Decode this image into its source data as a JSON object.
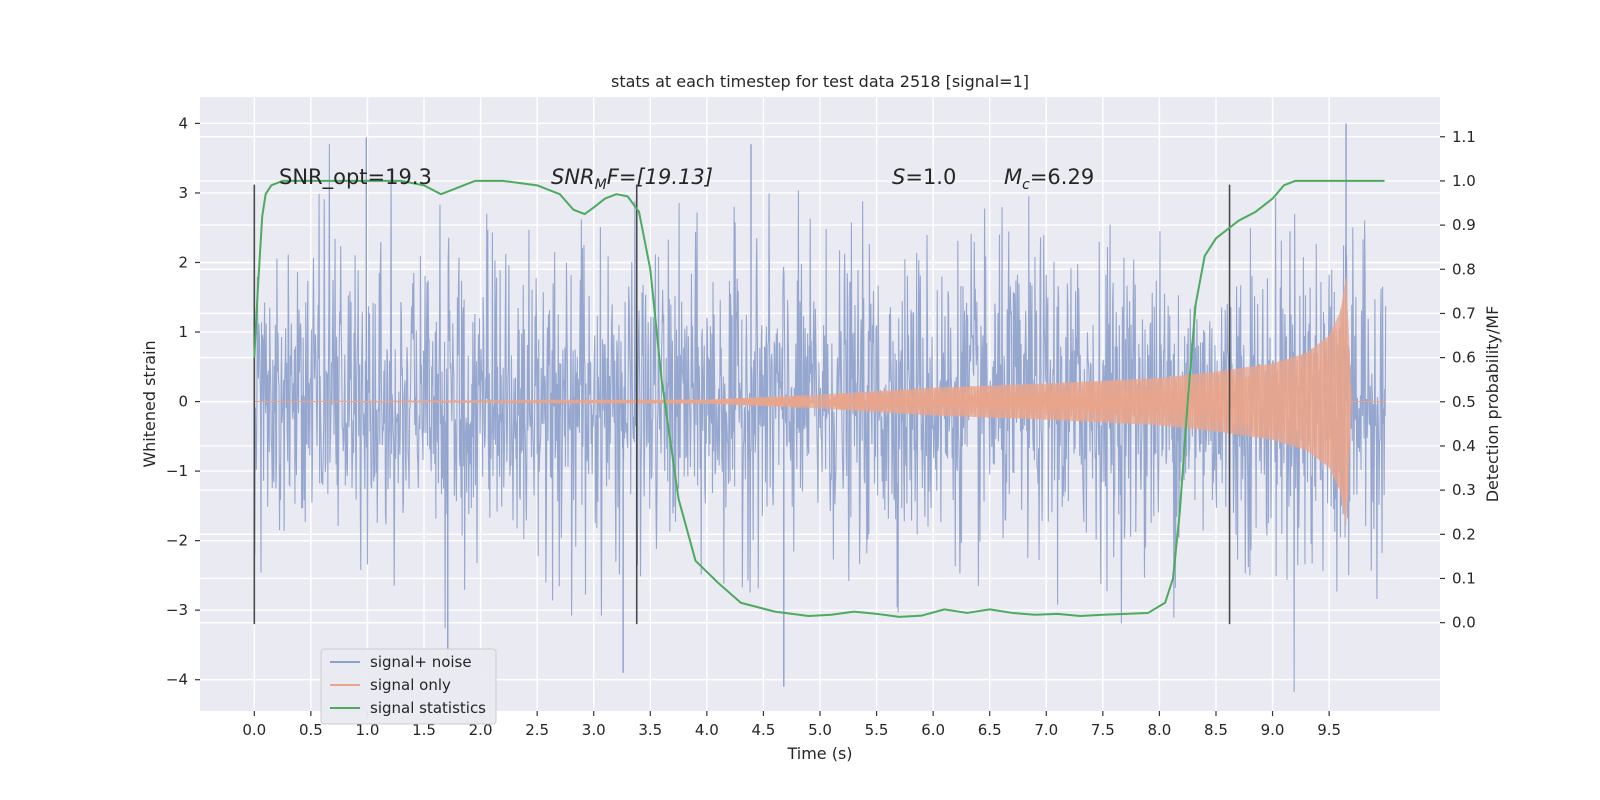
{
  "chart_data": {
    "type": "line",
    "title": "stats at each timestep for test data 2518 [signal=1]",
    "xlabel": "Time (s)",
    "ylabel": "Whitened strain",
    "ylabel_right": "Detection probability/MF",
    "xlim": [
      -0.48,
      10.48
    ],
    "ylim": [
      -4.45,
      4.38
    ],
    "ylim_right": [
      -0.2,
      1.19
    ],
    "x_ticks": [
      0.0,
      0.5,
      1.0,
      1.5,
      2.0,
      2.5,
      3.0,
      3.5,
      4.0,
      4.5,
      5.0,
      5.5,
      6.0,
      6.5,
      7.0,
      7.5,
      8.0,
      8.5,
      9.0,
      9.5
    ],
    "x_tick_labels": [
      "0.0",
      "0.5",
      "1.0",
      "1.5",
      "2.0",
      "2.5",
      "3.0",
      "3.5",
      "4.0",
      "4.5",
      "5.0",
      "5.5",
      "6.0",
      "6.5",
      "7.0",
      "7.5",
      "8.0",
      "8.5",
      "9.0",
      "9.5"
    ],
    "y_ticks": [
      -4,
      -3,
      -2,
      -1,
      0,
      1,
      2,
      3,
      4
    ],
    "y_tick_labels": [
      "−4",
      "−3",
      "−2",
      "−1",
      "0",
      "1",
      "2",
      "3",
      "4"
    ],
    "y_right_ticks": [
      0.0,
      0.1,
      0.2,
      0.3,
      0.4,
      0.5,
      0.6,
      0.7,
      0.8,
      0.9,
      1.0,
      1.1
    ],
    "y_right_tick_labels": [
      "0.0",
      "0.1",
      "0.2",
      "0.3",
      "0.4",
      "0.5",
      "0.6",
      "0.7",
      "0.8",
      "0.9",
      "1.0",
      "1.1"
    ],
    "grid": true,
    "legend": {
      "position": "lower-left",
      "entries": [
        {
          "label": "signal+ noise",
          "color": "#8da0cb"
        },
        {
          "label": "signal only",
          "color": "#e9a58c"
        },
        {
          "label": "signal statistics",
          "color": "#4daa5f"
        }
      ]
    },
    "annotations": {
      "snr_opt": "SNR_opt=19.3",
      "snr_mf_prefix": "SNR",
      "snr_mf_sub": "M",
      "snr_mf_suffix": "F=[19.13]",
      "s_prefix": "S",
      "s_suffix": "=1.0",
      "mc_prefix": "M",
      "mc_sub": "c",
      "mc_suffix": "=6.29"
    },
    "vertical_markers_x": [
      0.0,
      3.38,
      8.62
    ],
    "vertical_marker_range": [
      -3.2,
      3.12
    ],
    "series": [
      {
        "name": "signal+ noise",
        "color": "#8da0cb",
        "x_range": [
          0.0,
          10.0
        ],
        "baseline_sigma": 1.0,
        "extremes": [
          {
            "x": 0.99,
            "y": 3.8
          },
          {
            "x": 9.65,
            "y": 4.0
          },
          {
            "x": 3.26,
            "y": -3.9
          },
          {
            "x": 4.68,
            "y": -4.1
          },
          {
            "x": 1.71,
            "y": -3.7
          },
          {
            "x": 4.39,
            "y": 3.7
          }
        ]
      },
      {
        "name": "signal only",
        "color": "#e9a58c",
        "envelope": [
          {
            "x": 0.0,
            "amp": 0.0
          },
          {
            "x": 4.0,
            "amp": 0.03
          },
          {
            "x": 5.0,
            "amp": 0.1
          },
          {
            "x": 6.0,
            "amp": 0.2
          },
          {
            "x": 7.0,
            "amp": 0.26
          },
          {
            "x": 8.0,
            "amp": 0.34
          },
          {
            "x": 8.5,
            "amp": 0.43
          },
          {
            "x": 9.0,
            "amp": 0.55
          },
          {
            "x": 9.3,
            "amp": 0.7
          },
          {
            "x": 9.5,
            "amp": 0.95
          },
          {
            "x": 9.6,
            "amp": 1.3
          },
          {
            "x": 9.66,
            "amp": 1.9
          },
          {
            "x": 9.69,
            "amp": 0.0
          },
          {
            "x": 10.0,
            "amp": 0.0
          }
        ]
      },
      {
        "name": "signal statistics",
        "color": "#4daa5f",
        "axis": "right",
        "x": [
          0.0,
          0.03,
          0.07,
          0.1,
          0.15,
          0.25,
          0.5,
          1.0,
          1.3,
          1.5,
          1.65,
          1.75,
          1.85,
          1.95,
          2.2,
          2.5,
          2.7,
          2.82,
          2.92,
          3.0,
          3.1,
          3.2,
          3.3,
          3.4,
          3.5,
          3.6,
          3.75,
          3.9,
          4.1,
          4.3,
          4.6,
          4.9,
          5.1,
          5.3,
          5.5,
          5.7,
          5.9,
          6.1,
          6.3,
          6.5,
          6.7,
          6.9,
          7.1,
          7.3,
          7.5,
          7.7,
          7.9,
          8.05,
          8.12,
          8.18,
          8.25,
          8.32,
          8.4,
          8.5,
          8.6,
          8.7,
          8.85,
          9.0,
          9.1,
          9.2,
          9.3,
          9.5,
          9.7,
          9.99
        ],
        "y": [
          0.6,
          0.75,
          0.92,
          0.97,
          0.99,
          1.0,
          1.0,
          1.0,
          1.0,
          0.99,
          0.97,
          0.98,
          0.99,
          1.0,
          1.0,
          0.99,
          0.97,
          0.935,
          0.925,
          0.94,
          0.96,
          0.97,
          0.965,
          0.93,
          0.8,
          0.55,
          0.28,
          0.14,
          0.09,
          0.045,
          0.025,
          0.015,
          0.018,
          0.025,
          0.02,
          0.013,
          0.016,
          0.03,
          0.022,
          0.03,
          0.022,
          0.018,
          0.02,
          0.015,
          0.018,
          0.02,
          0.022,
          0.045,
          0.1,
          0.25,
          0.5,
          0.72,
          0.83,
          0.87,
          0.89,
          0.91,
          0.93,
          0.96,
          0.99,
          1.0,
          1.0,
          1.0,
          1.0,
          1.0
        ]
      }
    ]
  }
}
